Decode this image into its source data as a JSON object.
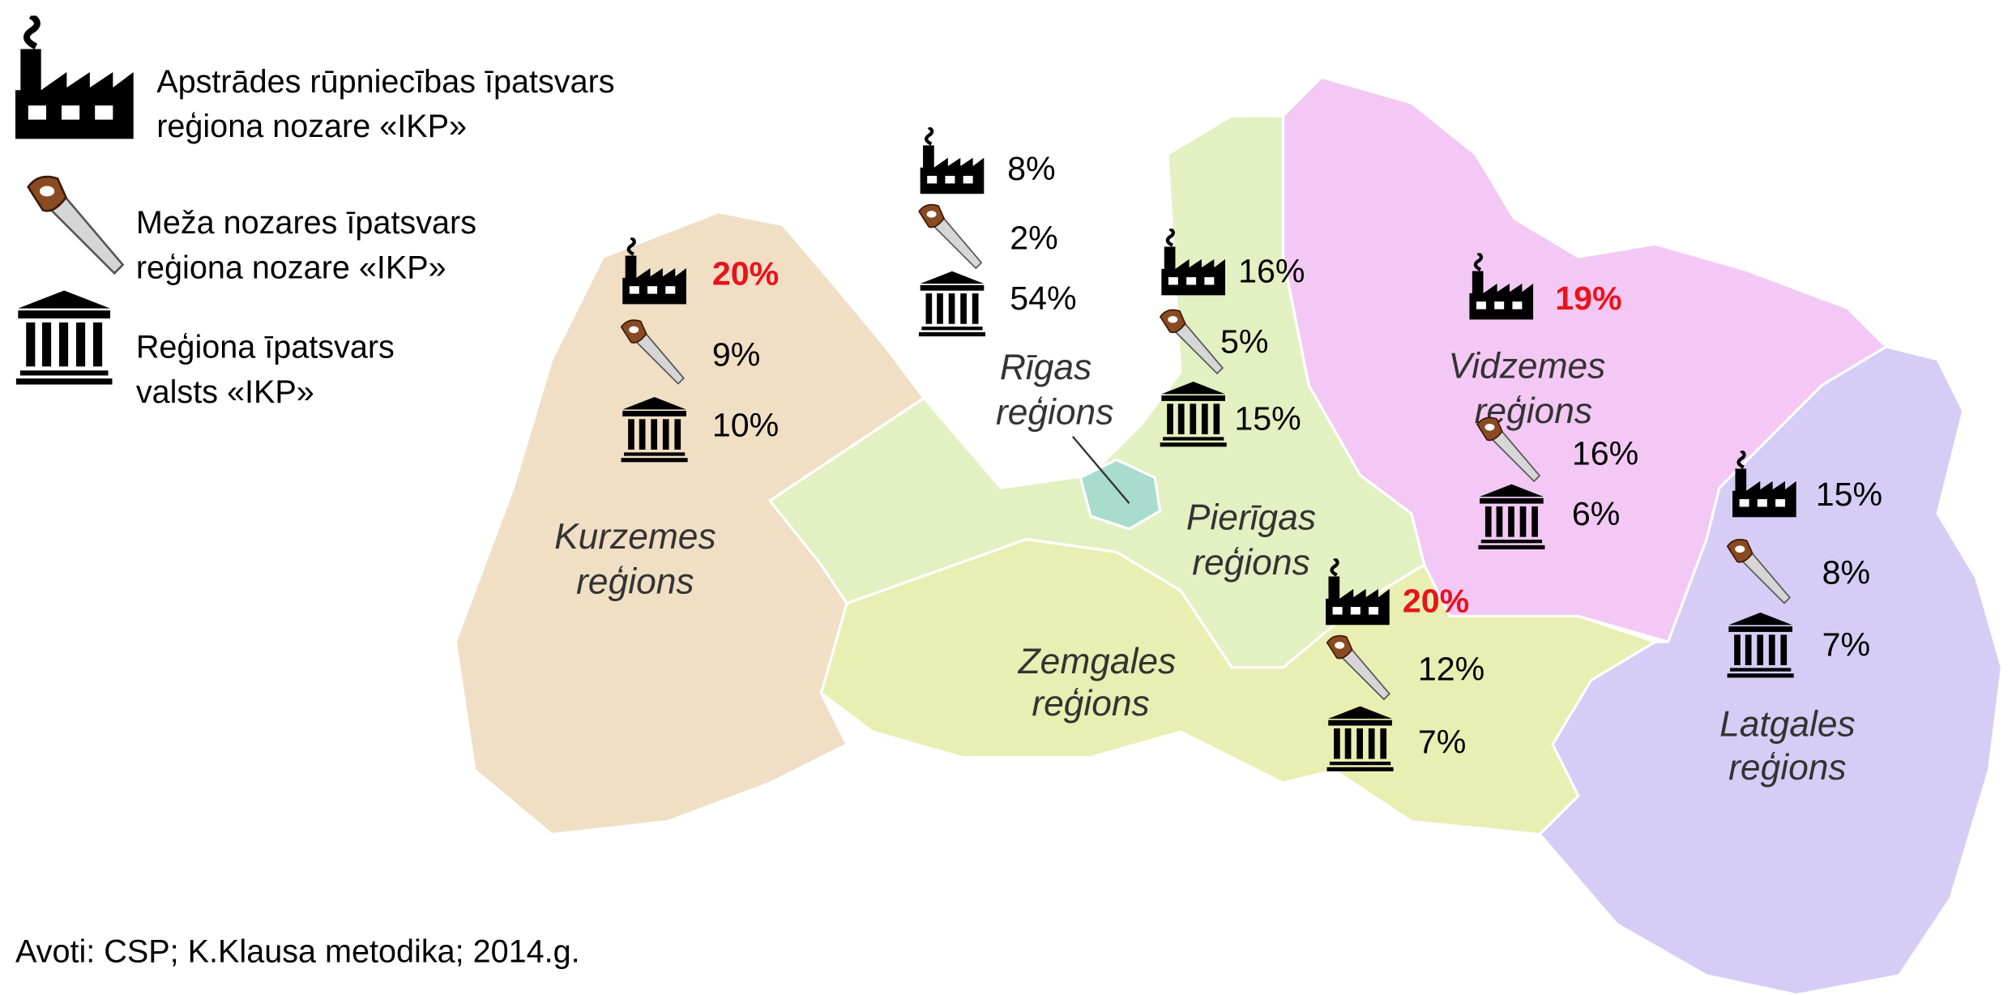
{
  "legend": [
    {
      "label_lines": [
        "Apstrādes rūpniecības īpatsvars",
        "reģiona nozare «IKP»"
      ]
    },
    {
      "label_lines": [
        "Meža nozares īpatsvars",
        "reģiona nozare «IKP»"
      ]
    },
    {
      "label_lines": [
        "Reģiona īpatsvars",
        "valsts «IKP»"
      ]
    }
  ],
  "regions": [
    {
      "name_lines": [
        "Kurzemes",
        "reģions"
      ],
      "manufacturing": "20%",
      "forestry": "9%",
      "gdp_share": "10%"
    },
    {
      "name_lines": [
        "Rīgas",
        "reģions"
      ],
      "manufacturing": "8%",
      "forestry": "2%",
      "gdp_share": "54%"
    },
    {
      "name_lines": [
        "Pierīgas",
        "reģions"
      ],
      "manufacturing": "16%",
      "forestry": "5%",
      "gdp_share": "15%"
    },
    {
      "name_lines": [
        "Zemgales",
        "reģions"
      ],
      "manufacturing": "20%",
      "forestry": "12%",
      "gdp_share": "7%"
    },
    {
      "name_lines": [
        "Vidzemes",
        "reģions"
      ],
      "manufacturing": "19%",
      "forestry": "16%",
      "gdp_share": "6%"
    },
    {
      "name_lines": [
        "Latgales",
        "reģions"
      ],
      "manufacturing": "15%",
      "forestry": "8%",
      "gdp_share": "7%"
    }
  ],
  "source": "Avoti: CSP; K.Klausa metodika; 2014.g."
}
